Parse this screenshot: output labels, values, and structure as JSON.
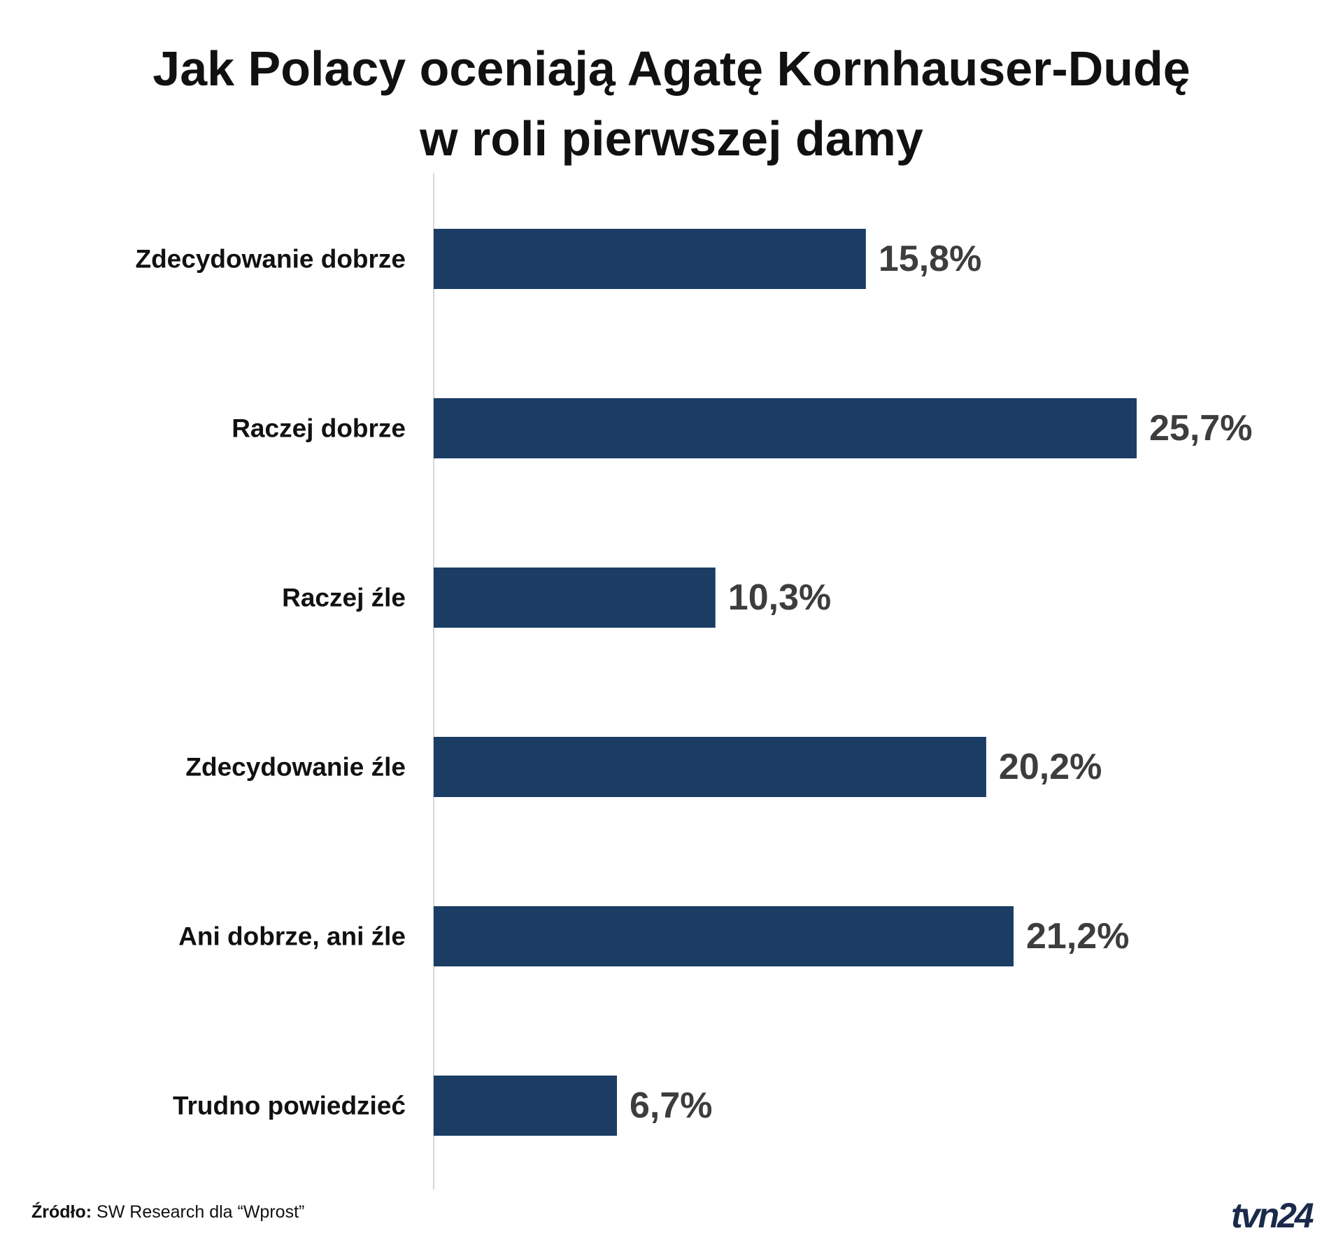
{
  "title": {
    "line1": "Jak Polacy oceniają Agatę Kornhauser-Dudę",
    "line2": "w roli pierwszej damy"
  },
  "chart_data": {
    "type": "bar",
    "orientation": "horizontal",
    "categories": [
      "Zdecydowanie dobrze",
      "Raczej dobrze",
      "Raczej źle",
      "Zdecydowanie źle",
      "Ani dobrze, ani źle",
      "Trudno powiedzieć"
    ],
    "values": [
      15.8,
      25.7,
      10.3,
      20.2,
      21.2,
      6.7
    ],
    "value_labels": [
      "15,8%",
      "25,7%",
      "10,3%",
      "20,2%",
      "21,2%",
      "6,7%"
    ],
    "unit": "%",
    "xlim": [
      0,
      25.7
    ],
    "grid": false,
    "legend": "none",
    "bar_color": "#1b3d64"
  },
  "source": {
    "label": "Źródło:",
    "text": "SW Research dla “Wprost”"
  },
  "logo": {
    "text": "tvn24",
    "color": "#1b2a4a"
  }
}
